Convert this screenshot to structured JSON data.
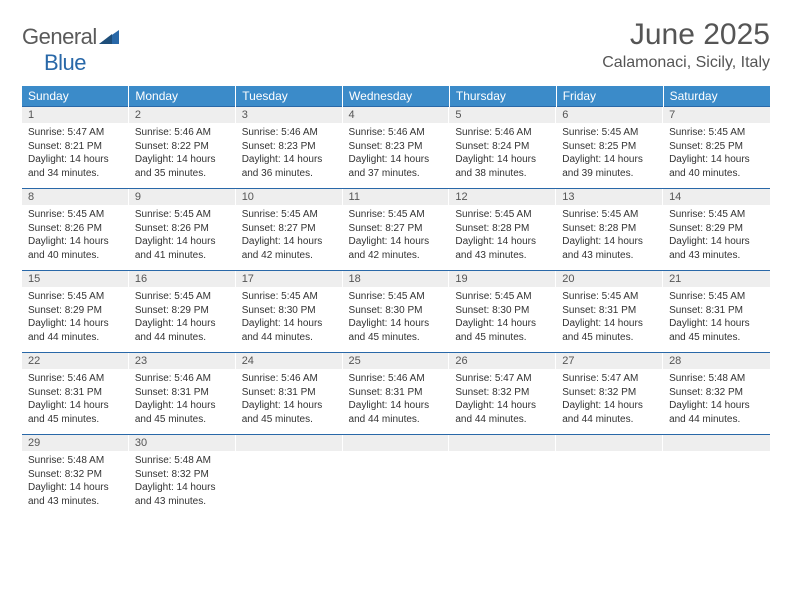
{
  "brand": {
    "word1": "General",
    "word2": "Blue"
  },
  "title": "June 2025",
  "location": "Calamonaci, Sicily, Italy",
  "colors": {
    "header_bg": "#3b8bc9",
    "header_text": "#ffffff",
    "daynum_bg": "#eeeeee",
    "rule": "#2968a8",
    "text": "#333333",
    "title_text": "#555555",
    "logo_gray": "#5a5a5a",
    "logo_blue": "#2968a8",
    "page_bg": "#ffffff"
  },
  "day_headers": [
    "Sunday",
    "Monday",
    "Tuesday",
    "Wednesday",
    "Thursday",
    "Friday",
    "Saturday"
  ],
  "weeks": [
    [
      {
        "n": "1",
        "sr": "5:47 AM",
        "ss": "8:21 PM",
        "dl": "14 hours and 34 minutes."
      },
      {
        "n": "2",
        "sr": "5:46 AM",
        "ss": "8:22 PM",
        "dl": "14 hours and 35 minutes."
      },
      {
        "n": "3",
        "sr": "5:46 AM",
        "ss": "8:23 PM",
        "dl": "14 hours and 36 minutes."
      },
      {
        "n": "4",
        "sr": "5:46 AM",
        "ss": "8:23 PM",
        "dl": "14 hours and 37 minutes."
      },
      {
        "n": "5",
        "sr": "5:46 AM",
        "ss": "8:24 PM",
        "dl": "14 hours and 38 minutes."
      },
      {
        "n": "6",
        "sr": "5:45 AM",
        "ss": "8:25 PM",
        "dl": "14 hours and 39 minutes."
      },
      {
        "n": "7",
        "sr": "5:45 AM",
        "ss": "8:25 PM",
        "dl": "14 hours and 40 minutes."
      }
    ],
    [
      {
        "n": "8",
        "sr": "5:45 AM",
        "ss": "8:26 PM",
        "dl": "14 hours and 40 minutes."
      },
      {
        "n": "9",
        "sr": "5:45 AM",
        "ss": "8:26 PM",
        "dl": "14 hours and 41 minutes."
      },
      {
        "n": "10",
        "sr": "5:45 AM",
        "ss": "8:27 PM",
        "dl": "14 hours and 42 minutes."
      },
      {
        "n": "11",
        "sr": "5:45 AM",
        "ss": "8:27 PM",
        "dl": "14 hours and 42 minutes."
      },
      {
        "n": "12",
        "sr": "5:45 AM",
        "ss": "8:28 PM",
        "dl": "14 hours and 43 minutes."
      },
      {
        "n": "13",
        "sr": "5:45 AM",
        "ss": "8:28 PM",
        "dl": "14 hours and 43 minutes."
      },
      {
        "n": "14",
        "sr": "5:45 AM",
        "ss": "8:29 PM",
        "dl": "14 hours and 43 minutes."
      }
    ],
    [
      {
        "n": "15",
        "sr": "5:45 AM",
        "ss": "8:29 PM",
        "dl": "14 hours and 44 minutes."
      },
      {
        "n": "16",
        "sr": "5:45 AM",
        "ss": "8:29 PM",
        "dl": "14 hours and 44 minutes."
      },
      {
        "n": "17",
        "sr": "5:45 AM",
        "ss": "8:30 PM",
        "dl": "14 hours and 44 minutes."
      },
      {
        "n": "18",
        "sr": "5:45 AM",
        "ss": "8:30 PM",
        "dl": "14 hours and 45 minutes."
      },
      {
        "n": "19",
        "sr": "5:45 AM",
        "ss": "8:30 PM",
        "dl": "14 hours and 45 minutes."
      },
      {
        "n": "20",
        "sr": "5:45 AM",
        "ss": "8:31 PM",
        "dl": "14 hours and 45 minutes."
      },
      {
        "n": "21",
        "sr": "5:45 AM",
        "ss": "8:31 PM",
        "dl": "14 hours and 45 minutes."
      }
    ],
    [
      {
        "n": "22",
        "sr": "5:46 AM",
        "ss": "8:31 PM",
        "dl": "14 hours and 45 minutes."
      },
      {
        "n": "23",
        "sr": "5:46 AM",
        "ss": "8:31 PM",
        "dl": "14 hours and 45 minutes."
      },
      {
        "n": "24",
        "sr": "5:46 AM",
        "ss": "8:31 PM",
        "dl": "14 hours and 45 minutes."
      },
      {
        "n": "25",
        "sr": "5:46 AM",
        "ss": "8:31 PM",
        "dl": "14 hours and 44 minutes."
      },
      {
        "n": "26",
        "sr": "5:47 AM",
        "ss": "8:32 PM",
        "dl": "14 hours and 44 minutes."
      },
      {
        "n": "27",
        "sr": "5:47 AM",
        "ss": "8:32 PM",
        "dl": "14 hours and 44 minutes."
      },
      {
        "n": "28",
        "sr": "5:48 AM",
        "ss": "8:32 PM",
        "dl": "14 hours and 44 minutes."
      }
    ],
    [
      {
        "n": "29",
        "sr": "5:48 AM",
        "ss": "8:32 PM",
        "dl": "14 hours and 43 minutes."
      },
      {
        "n": "30",
        "sr": "5:48 AM",
        "ss": "8:32 PM",
        "dl": "14 hours and 43 minutes."
      },
      null,
      null,
      null,
      null,
      null
    ]
  ],
  "labels": {
    "sunrise": "Sunrise:",
    "sunset": "Sunset:",
    "daylight": "Daylight:"
  }
}
